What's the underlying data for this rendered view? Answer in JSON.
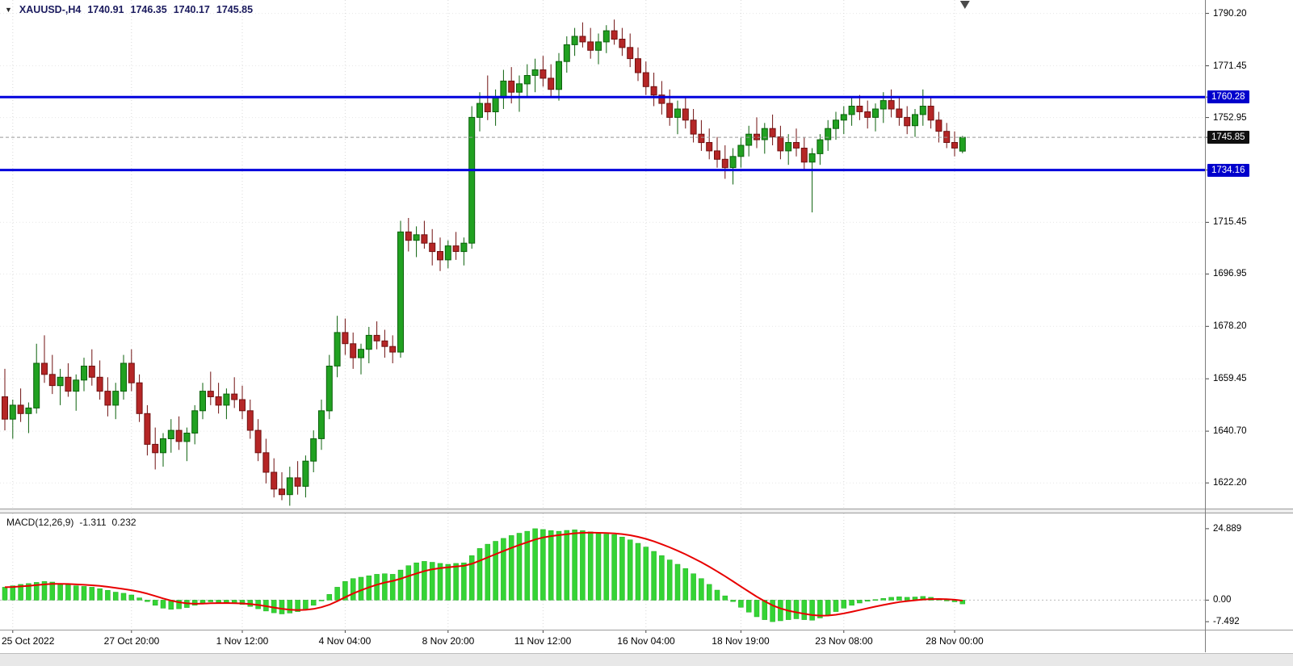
{
  "header": {
    "symbol_label": "XAUUSD-,H4",
    "open": "1740.91",
    "high": "1746.35",
    "low": "1740.17",
    "close": "1745.85"
  },
  "macd_panel": {
    "name": "MACD(12,26,9)",
    "main_value": "-1.311",
    "signal_value": "0.232",
    "axis": [
      {
        "text": "24.889",
        "value": 24.889
      },
      {
        "text": "0.00",
        "value": 0
      },
      {
        "text": "-7.492",
        "value": -7.492
      }
    ]
  },
  "price_axis": {
    "ticks": [
      "1790.20",
      "1771.45",
      "1752.95",
      "1715.45",
      "1696.95",
      "1678.20",
      "1659.45",
      "1640.70",
      "1622.20"
    ],
    "current_label": "1745.85",
    "line_labels": [
      "1760.28",
      "1734.16"
    ]
  },
  "colors": {
    "grid_v": "#d8d8d8",
    "grid_h": "#e7e7e7",
    "candle_up": "#21a121",
    "candle_up_edge": "#0b610b",
    "candle_down": "#b52626",
    "candle_down_edge": "#701111",
    "macd_bar": "#35d435",
    "macd_bar_edge": "#1fae1f",
    "macd_signal": "#e80000",
    "hline": "#0202dd",
    "current_label_bg": "#101010",
    "hline_label_bg": "#0000cc"
  },
  "chart_data": {
    "type": "candlestick",
    "symbol": "XAUUSD-",
    "timeframe": "H4",
    "title": "XAUUSD- H4 candlestick chart with MACD(12,26,9) sub-window",
    "price_range": [
      1613,
      1795
    ],
    "current_price": 1745.85,
    "hlines": [
      1760.28,
      1734.16
    ],
    "x_ticks": [
      {
        "index": 1,
        "label": "25 Oct 2022"
      },
      {
        "index": 16,
        "label": "27 Oct 20:00"
      },
      {
        "index": 30,
        "label": "1 Nov 12:00"
      },
      {
        "index": 43,
        "label": "4 Nov 04:00"
      },
      {
        "index": 56,
        "label": "8 Nov 20:00"
      },
      {
        "index": 68,
        "label": "11 Nov 12:00"
      },
      {
        "index": 81,
        "label": "16 Nov 04:00"
      },
      {
        "index": 93,
        "label": "18 Nov 19:00"
      },
      {
        "index": 106,
        "label": "23 Nov 08:00"
      },
      {
        "index": 120,
        "label": "28 Nov 00:00"
      }
    ],
    "candles": [
      [
        1653,
        1663,
        1641,
        1645
      ],
      [
        1645,
        1652,
        1638,
        1650
      ],
      [
        1650,
        1656,
        1644,
        1647
      ],
      [
        1647,
        1651,
        1640,
        1649
      ],
      [
        1649,
        1672,
        1647,
        1665
      ],
      [
        1665,
        1675,
        1658,
        1661
      ],
      [
        1661,
        1668,
        1654,
        1657
      ],
      [
        1657,
        1663,
        1650,
        1660
      ],
      [
        1660,
        1665,
        1653,
        1655
      ],
      [
        1655,
        1661,
        1648,
        1659
      ],
      [
        1659,
        1667,
        1655,
        1664
      ],
      [
        1664,
        1670,
        1657,
        1660
      ],
      [
        1660,
        1666,
        1652,
        1655
      ],
      [
        1655,
        1660,
        1646,
        1650
      ],
      [
        1650,
        1658,
        1645,
        1655
      ],
      [
        1655,
        1668,
        1652,
        1665
      ],
      [
        1665,
        1670,
        1655,
        1658
      ],
      [
        1658,
        1661,
        1644,
        1647
      ],
      [
        1647,
        1650,
        1632,
        1636
      ],
      [
        1636,
        1642,
        1627,
        1633
      ],
      [
        1633,
        1640,
        1628,
        1638
      ],
      [
        1638,
        1645,
        1633,
        1641
      ],
      [
        1641,
        1646,
        1634,
        1637
      ],
      [
        1637,
        1642,
        1630,
        1640
      ],
      [
        1640,
        1650,
        1636,
        1648
      ],
      [
        1648,
        1658,
        1645,
        1655
      ],
      [
        1655,
        1662,
        1650,
        1653
      ],
      [
        1653,
        1658,
        1647,
        1650
      ],
      [
        1650,
        1656,
        1645,
        1654
      ],
      [
        1654,
        1660,
        1649,
        1652
      ],
      [
        1652,
        1657,
        1645,
        1648
      ],
      [
        1648,
        1652,
        1638,
        1641
      ],
      [
        1641,
        1645,
        1630,
        1633
      ],
      [
        1633,
        1638,
        1622,
        1626
      ],
      [
        1626,
        1631,
        1617,
        1620
      ],
      [
        1620,
        1626,
        1616,
        1618
      ],
      [
        1618,
        1628,
        1614,
        1624
      ],
      [
        1624,
        1630,
        1618,
        1621
      ],
      [
        1621,
        1632,
        1617,
        1630
      ],
      [
        1630,
        1641,
        1626,
        1638
      ],
      [
        1638,
        1652,
        1634,
        1648
      ],
      [
        1648,
        1668,
        1645,
        1664
      ],
      [
        1664,
        1682,
        1660,
        1676
      ],
      [
        1676,
        1681,
        1668,
        1672
      ],
      [
        1672,
        1676,
        1663,
        1667
      ],
      [
        1667,
        1672,
        1661,
        1670
      ],
      [
        1670,
        1678,
        1665,
        1675
      ],
      [
        1675,
        1680,
        1670,
        1673
      ],
      [
        1673,
        1677,
        1667,
        1671
      ],
      [
        1671,
        1675,
        1665,
        1669
      ],
      [
        1669,
        1716,
        1667,
        1712
      ],
      [
        1712,
        1717,
        1705,
        1709
      ],
      [
        1709,
        1714,
        1703,
        1711
      ],
      [
        1711,
        1716,
        1706,
        1708
      ],
      [
        1708,
        1713,
        1700,
        1705
      ],
      [
        1705,
        1710,
        1698,
        1702
      ],
      [
        1702,
        1709,
        1699,
        1707
      ],
      [
        1707,
        1712,
        1702,
        1705
      ],
      [
        1705,
        1710,
        1700,
        1708
      ],
      [
        1708,
        1757,
        1706,
        1753
      ],
      [
        1753,
        1762,
        1748,
        1758
      ],
      [
        1758,
        1768,
        1752,
        1755
      ],
      [
        1755,
        1763,
        1750,
        1760
      ],
      [
        1760,
        1770,
        1756,
        1766
      ],
      [
        1766,
        1771,
        1758,
        1762
      ],
      [
        1762,
        1768,
        1755,
        1765
      ],
      [
        1765,
        1772,
        1760,
        1768
      ],
      [
        1768,
        1774,
        1762,
        1770
      ],
      [
        1770,
        1775,
        1764,
        1767
      ],
      [
        1767,
        1772,
        1760,
        1763
      ],
      [
        1763,
        1776,
        1759,
        1773
      ],
      [
        1773,
        1782,
        1769,
        1779
      ],
      [
        1779,
        1785,
        1775,
        1782
      ],
      [
        1782,
        1787,
        1778,
        1780
      ],
      [
        1780,
        1785,
        1774,
        1777
      ],
      [
        1777,
        1783,
        1772,
        1780
      ],
      [
        1780,
        1786,
        1776,
        1784
      ],
      [
        1784,
        1788,
        1779,
        1781
      ],
      [
        1781,
        1785,
        1775,
        1778
      ],
      [
        1778,
        1783,
        1771,
        1774
      ],
      [
        1774,
        1778,
        1766,
        1769
      ],
      [
        1769,
        1773,
        1761,
        1764
      ],
      [
        1764,
        1769,
        1757,
        1761
      ],
      [
        1761,
        1766,
        1754,
        1758
      ],
      [
        1758,
        1763,
        1750,
        1753
      ],
      [
        1753,
        1759,
        1747,
        1756
      ],
      [
        1756,
        1760,
        1749,
        1752
      ],
      [
        1752,
        1756,
        1744,
        1747
      ],
      [
        1747,
        1752,
        1741,
        1744
      ],
      [
        1744,
        1749,
        1738,
        1741
      ],
      [
        1741,
        1746,
        1735,
        1738
      ],
      [
        1738,
        1743,
        1731,
        1735
      ],
      [
        1735,
        1742,
        1729,
        1739
      ],
      [
        1739,
        1746,
        1735,
        1743
      ],
      [
        1743,
        1750,
        1739,
        1747
      ],
      [
        1747,
        1753,
        1742,
        1745
      ],
      [
        1745,
        1751,
        1740,
        1749
      ],
      [
        1749,
        1754,
        1743,
        1746
      ],
      [
        1746,
        1750,
        1738,
        1741
      ],
      [
        1741,
        1747,
        1736,
        1744
      ],
      [
        1744,
        1749,
        1739,
        1742
      ],
      [
        1742,
        1746,
        1734,
        1737
      ],
      [
        1737,
        1742,
        1719,
        1740
      ],
      [
        1740,
        1747,
        1736,
        1745
      ],
      [
        1745,
        1752,
        1741,
        1749
      ],
      [
        1749,
        1755,
        1745,
        1752
      ],
      [
        1752,
        1757,
        1747,
        1754
      ],
      [
        1754,
        1760,
        1750,
        1757
      ],
      [
        1757,
        1761,
        1752,
        1755
      ],
      [
        1755,
        1759,
        1749,
        1753
      ],
      [
        1753,
        1758,
        1748,
        1756
      ],
      [
        1756,
        1762,
        1751,
        1759
      ],
      [
        1759,
        1763,
        1753,
        1756
      ],
      [
        1756,
        1760,
        1750,
        1753
      ],
      [
        1753,
        1757,
        1747,
        1750
      ],
      [
        1750,
        1756,
        1746,
        1754
      ],
      [
        1754,
        1763,
        1750,
        1757
      ],
      [
        1757,
        1760,
        1749,
        1752
      ],
      [
        1752,
        1755,
        1744,
        1748
      ],
      [
        1748,
        1751,
        1742,
        1744
      ],
      [
        1744,
        1748,
        1739,
        1742
      ],
      [
        1740.91,
        1746.35,
        1740.17,
        1745.85
      ]
    ],
    "macd": {
      "params": "12,26,9",
      "signal_period": 9,
      "range": [
        -10,
        30.2
      ],
      "main": [
        4.5,
        5.0,
        5.5,
        5.8,
        6.2,
        6.5,
        6.3,
        5.8,
        5.4,
        5.0,
        4.8,
        4.5,
        4.0,
        3.4,
        2.8,
        2.4,
        1.8,
        0.8,
        -0.5,
        -1.8,
        -2.8,
        -3.2,
        -3.0,
        -2.6,
        -1.8,
        -1.0,
        -0.6,
        -0.8,
        -1.0,
        -1.2,
        -1.5,
        -2.2,
        -3.0,
        -3.8,
        -4.4,
        -4.8,
        -4.5,
        -4.0,
        -3.0,
        -1.8,
        -0.2,
        2.0,
        4.5,
        6.5,
        7.5,
        8.0,
        8.5,
        9.0,
        9.2,
        9.0,
        10.5,
        12.0,
        13.0,
        13.5,
        13.2,
        12.8,
        12.5,
        12.8,
        13.0,
        15.5,
        18.0,
        19.5,
        20.5,
        21.5,
        22.5,
        23.3,
        24.0,
        24.889,
        24.6,
        24.2,
        24.0,
        24.3,
        24.5,
        24.2,
        23.8,
        23.2,
        23.0,
        22.8,
        22.0,
        21.0,
        19.8,
        18.5,
        17.0,
        15.5,
        14.0,
        12.5,
        11.0,
        9.2,
        7.5,
        5.5,
        3.5,
        1.5,
        -0.5,
        -2.5,
        -4.2,
        -5.8,
        -6.8,
        -7.492,
        -7.2,
        -6.8,
        -6.5,
        -6.8,
        -7.0,
        -6.2,
        -5.2,
        -4.0,
        -2.8,
        -1.8,
        -1.0,
        -0.4,
        0.2,
        0.6,
        1.0,
        1.2,
        1.0,
        1.1,
        1.3,
        1.0,
        0.5,
        0.0,
        -0.6,
        -1.311
      ]
    }
  }
}
